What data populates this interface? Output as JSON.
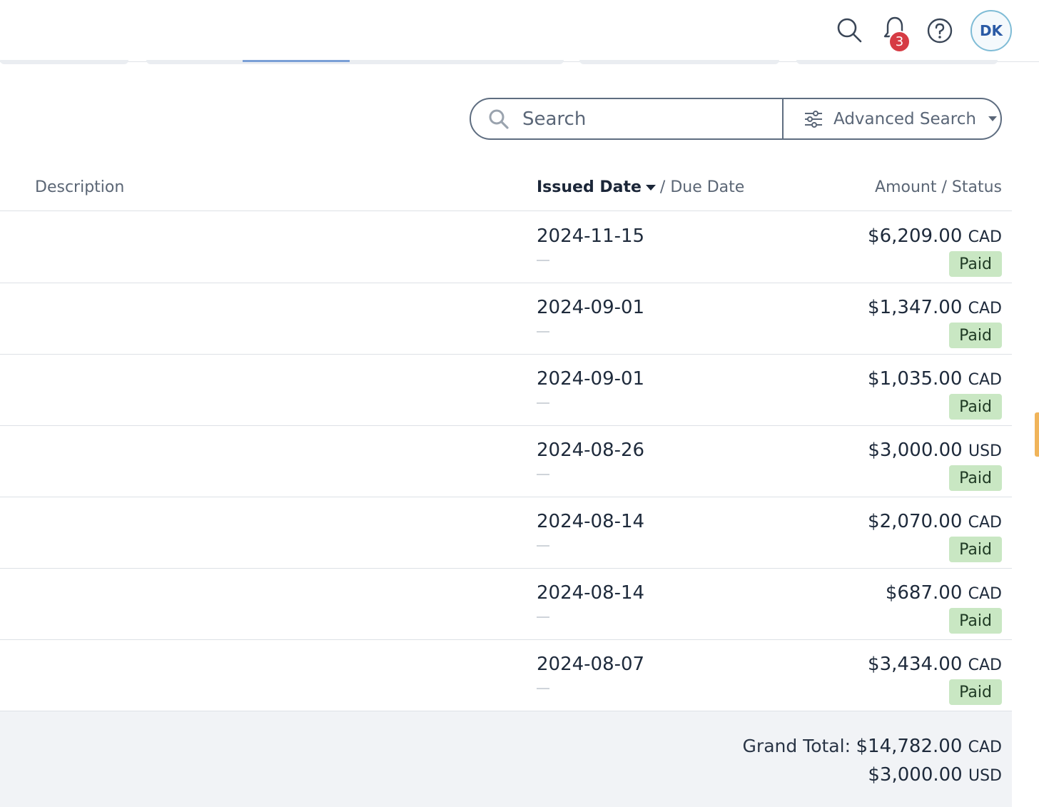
{
  "topbar": {
    "icons": [
      "search-icon",
      "bell-icon",
      "help-icon"
    ],
    "notification_count": "3",
    "avatar_initials": "DK"
  },
  "search": {
    "placeholder": "Search",
    "advanced_label": "Advanced Search"
  },
  "table": {
    "headers": {
      "description": "Description",
      "issued_date": "Issued Date",
      "due_date_sep": "/ Due Date",
      "amount_status": "Amount / Status"
    },
    "rows": [
      {
        "issued": "2024-11-15",
        "amount": "$6,209.00",
        "currency": "CAD",
        "status": "Paid"
      },
      {
        "issued": "2024-09-01",
        "amount": "$1,347.00",
        "currency": "CAD",
        "status": "Paid"
      },
      {
        "issued": "2024-09-01",
        "amount": "$1,035.00",
        "currency": "CAD",
        "status": "Paid"
      },
      {
        "issued": "2024-08-26",
        "amount": "$3,000.00",
        "currency": "USD",
        "status": "Paid"
      },
      {
        "issued": "2024-08-14",
        "amount": "$2,070.00",
        "currency": "CAD",
        "status": "Paid"
      },
      {
        "issued": "2024-08-14",
        "amount": "$687.00",
        "currency": "CAD",
        "status": "Paid"
      },
      {
        "issued": "2024-08-07",
        "amount": "$3,434.00",
        "currency": "CAD",
        "status": "Paid"
      }
    ]
  },
  "grand_total": {
    "label": "Grand Total:",
    "lines": [
      {
        "amount": "$14,782.00",
        "currency": "CAD"
      },
      {
        "amount": "$3,000.00",
        "currency": "USD"
      }
    ]
  },
  "colors": {
    "paid_badge_bg": "#c9e7c3",
    "notification_badge": "#d63b44",
    "avatar_border": "#7fbcd6"
  }
}
